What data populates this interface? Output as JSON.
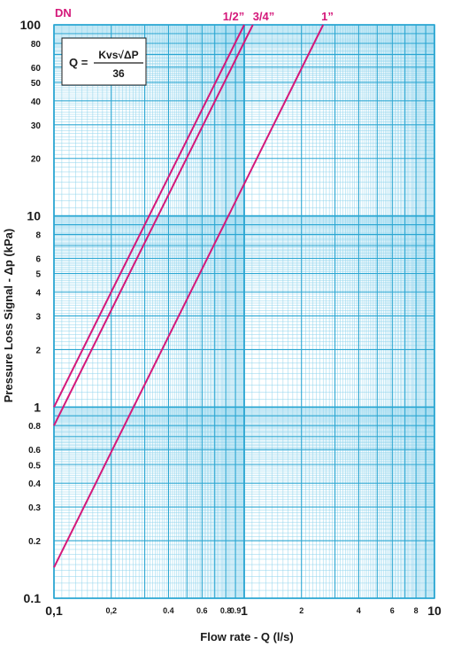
{
  "chart_data": {
    "type": "line",
    "title": "",
    "xlabel": "Flow rate - Q (l/s)",
    "ylabel": "Pressure Loss Signal  - Δp (kPa)",
    "x_scale": "log",
    "y_scale": "log",
    "xlim": [
      0.1,
      10
    ],
    "ylim": [
      0.1,
      100
    ],
    "grid": true,
    "x_tick_labels": [
      {
        "value": 0.1,
        "label": "0,1"
      },
      {
        "value": 0.2,
        "label": "0,2"
      },
      {
        "value": 0.4,
        "label": "0.4"
      },
      {
        "value": 0.6,
        "label": "0.6"
      },
      {
        "value": 0.8,
        "label": "0.8"
      },
      {
        "value": 0.9,
        "label": "0.9"
      },
      {
        "value": 1,
        "label": "1"
      },
      {
        "value": 2,
        "label": "2"
      },
      {
        "value": 4,
        "label": "4"
      },
      {
        "value": 6,
        "label": "6"
      },
      {
        "value": 8,
        "label": "8"
      },
      {
        "value": 10,
        "label": "10"
      }
    ],
    "y_tick_labels": [
      {
        "value": 100,
        "label": "100"
      },
      {
        "value": 80,
        "label": "80"
      },
      {
        "value": 60,
        "label": "60"
      },
      {
        "value": 50,
        "label": "50"
      },
      {
        "value": 40,
        "label": "40"
      },
      {
        "value": 30,
        "label": "30"
      },
      {
        "value": 20,
        "label": "20"
      },
      {
        "value": 10,
        "label": "10"
      },
      {
        "value": 8,
        "label": "8"
      },
      {
        "value": 6,
        "label": "6"
      },
      {
        "value": 5,
        "label": "5"
      },
      {
        "value": 4,
        "label": "4"
      },
      {
        "value": 3,
        "label": "3"
      },
      {
        "value": 2,
        "label": "2"
      },
      {
        "value": 1,
        "label": "1"
      },
      {
        "value": 0.8,
        "label": "0.8"
      },
      {
        "value": 0.6,
        "label": "0.6"
      },
      {
        "value": 0.5,
        "label": "0.5"
      },
      {
        "value": 0.4,
        "label": "0.4"
      },
      {
        "value": 0.3,
        "label": "0.3"
      },
      {
        "value": 0.2,
        "label": "0.2"
      },
      {
        "value": 0.1,
        "label": "0.1"
      }
    ],
    "series_group_label": "DN",
    "series": [
      {
        "name": "1/2”",
        "x": [
          0.1,
          1
        ],
        "y": [
          1,
          100
        ]
      },
      {
        "name": "3/4”",
        "x": [
          0.1,
          1.11
        ],
        "y": [
          0.8,
          100
        ]
      },
      {
        "name": "1”",
        "x": [
          0.1,
          2.6
        ],
        "y": [
          0.145,
          100
        ]
      }
    ],
    "formula": {
      "lhs": "Q =",
      "numerator": "Kvs√ΔP",
      "denominator": "36"
    }
  },
  "colors": {
    "series": "#d4187a",
    "grid_major": "#2aa6d2",
    "grid_minor": "#8ed3ec",
    "axis_text": "#1a1a1a",
    "series_labels": "#d4187a"
  }
}
